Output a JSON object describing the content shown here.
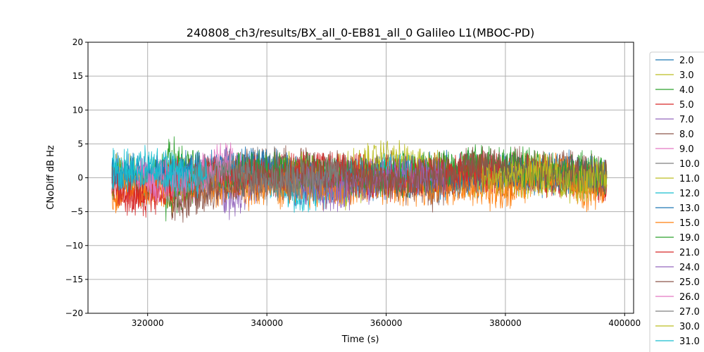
{
  "chart_data": {
    "type": "line",
    "title": "240808_ch3/results/BX_all_0-EB81_all_0 Galileo L1(MBOC-PD)",
    "xlabel": "Time (s)",
    "ylabel": "CNoDiff dB Hz",
    "xlim": [
      310000,
      401500
    ],
    "ylim": [
      -20,
      20
    ],
    "xticks": [
      320000,
      340000,
      360000,
      380000,
      400000
    ],
    "xtick_labels": [
      "320000",
      "340000",
      "360000",
      "380000",
      "400000"
    ],
    "yticks": [
      -20,
      -15,
      -10,
      -5,
      0,
      5,
      10,
      15,
      20
    ],
    "ytick_labels": [
      "−20",
      "−15",
      "−10",
      "−5",
      "0",
      "5",
      "10",
      "15",
      "20"
    ],
    "grid": true,
    "legend_position": "right, outside plot",
    "series": [
      {
        "name": "2.0",
        "color": "#1f77b4",
        "x": [
          314000,
          320000,
          330000,
          340000,
          350000,
          360000,
          370000,
          380000,
          390000,
          397000
        ],
        "y": [
          1.0,
          0.5,
          0.0,
          1.5,
          -0.5,
          0.5,
          1.0,
          0.5,
          0.0,
          0.5
        ]
      },
      {
        "name": "3.0",
        "color": "#bcbd22",
        "x": [
          314000,
          320000,
          330000,
          340000,
          350000,
          360000,
          370000,
          380000,
          390000,
          397000
        ],
        "y": [
          0.5,
          0.0,
          -0.5,
          0.5,
          0.0,
          3.0,
          0.5,
          0.0,
          -0.5,
          0.0
        ]
      },
      {
        "name": "4.0",
        "color": "#2ca02c",
        "x": [
          314000,
          320000,
          324000,
          330000,
          340000,
          350000,
          360000,
          370000,
          380000,
          390000,
          397000
        ],
        "y": [
          0.0,
          -1.0,
          3.0,
          0.5,
          1.0,
          0.0,
          0.5,
          1.0,
          2.0,
          0.5,
          1.0
        ]
      },
      {
        "name": "5.0",
        "color": "#d62728",
        "x": [
          314000,
          318000,
          325000,
          335000,
          345000,
          355000,
          365000,
          375000,
          385000,
          397000
        ],
        "y": [
          -1.5,
          -2.5,
          0.5,
          0.0,
          1.0,
          0.5,
          0.0,
          1.0,
          0.5,
          -1.0
        ]
      },
      {
        "name": "7.0",
        "color": "#9467bd",
        "x": [
          330000,
          334000,
          338000,
          348000,
          352000,
          360000
        ],
        "y": [
          0.0,
          -3.0,
          -1.0,
          -1.5,
          -2.0,
          0.0
        ]
      },
      {
        "name": "8.0",
        "color": "#8c564b",
        "x": [
          326000,
          330000,
          336000,
          362000,
          368000,
          375000,
          380000,
          390000,
          397000
        ],
        "y": [
          -1.0,
          0.5,
          2.0,
          0.5,
          -2.0,
          1.0,
          0.5,
          1.5,
          0.0
        ]
      },
      {
        "name": "9.0",
        "color": "#e377c2",
        "x": [
          314000,
          322000,
          328000,
          332000,
          336000
        ],
        "y": [
          -0.5,
          0.5,
          -0.5,
          2.0,
          1.0
        ]
      },
      {
        "name": "10.0",
        "color": "#7f7f7f",
        "x": [
          336000,
          340000,
          344000,
          350000,
          356000
        ],
        "y": [
          0.5,
          2.0,
          0.0,
          -1.0,
          0.5
        ]
      },
      {
        "name": "11.0",
        "color": "#bcbd22",
        "x": [
          340000,
          346000,
          352000,
          360000,
          370000
        ],
        "y": [
          0.0,
          1.0,
          -2.0,
          1.0,
          0.5
        ]
      },
      {
        "name": "12.0",
        "color": "#17becf",
        "x": [
          314000,
          320000,
          326000,
          332000,
          338000,
          346000,
          352000,
          360000,
          365000
        ],
        "y": [
          1.0,
          1.5,
          0.5,
          0.0,
          0.5,
          -3.0,
          -0.5,
          0.5,
          1.0
        ]
      },
      {
        "name": "13.0",
        "color": "#1f77b4",
        "x": [
          314000,
          320000,
          330000,
          340000,
          345000,
          366000,
          372000,
          380000,
          390000,
          397000
        ],
        "y": [
          0.5,
          0.0,
          1.0,
          2.0,
          -0.5,
          0.0,
          -1.0,
          0.5,
          1.0,
          0.0
        ]
      },
      {
        "name": "15.0",
        "color": "#ff7f0e",
        "x": [
          314000,
          316000,
          375000,
          380000,
          385000,
          390000,
          394000,
          397000
        ],
        "y": [
          -3.5,
          -2.0,
          -1.0,
          -2.5,
          0.5,
          1.0,
          -3.0,
          0.0
        ]
      },
      {
        "name": "19.0",
        "color": "#2ca02c",
        "x": [
          323000,
          330000,
          340000,
          350000,
          360000,
          370000,
          378000,
          386000,
          392000,
          397000
        ],
        "y": [
          -3.0,
          0.0,
          1.0,
          0.5,
          0.0,
          1.0,
          2.5,
          0.5,
          1.0,
          0.0
        ]
      },
      {
        "name": "21.0",
        "color": "#d62728",
        "x": [
          314000,
          318000,
          322000,
          330000,
          340000,
          350000,
          360000,
          370000,
          380000
        ],
        "y": [
          -1.0,
          -3.0,
          -2.0,
          0.5,
          0.0,
          1.0,
          -0.5,
          0.5,
          1.0
        ]
      },
      {
        "name": "24.0",
        "color": "#9467bd",
        "x": [
          345000,
          350000,
          356000,
          362000,
          370000
        ],
        "y": [
          0.0,
          -2.0,
          -1.0,
          0.5,
          0.0
        ]
      },
      {
        "name": "25.0",
        "color": "#8c564b",
        "x": [
          324000,
          330000,
          340000,
          350000,
          364000,
          370000,
          376000,
          384000,
          390000,
          397000
        ],
        "y": [
          -4.0,
          -2.0,
          0.0,
          0.5,
          -1.0,
          0.5,
          2.0,
          1.0,
          0.5,
          0.0
        ]
      },
      {
        "name": "26.0",
        "color": "#e377c2",
        "x": [
          318000,
          324000,
          330000,
          334000
        ],
        "y": [
          0.0,
          -1.0,
          0.5,
          2.5
        ]
      },
      {
        "name": "27.0",
        "color": "#7f7f7f",
        "x": [
          328000,
          334000,
          340000,
          346000,
          352000
        ],
        "y": [
          0.5,
          1.5,
          -1.0,
          0.0,
          0.5
        ]
      },
      {
        "name": "30.0",
        "color": "#bcbd22",
        "x": [
          376000,
          382000,
          388000,
          392000,
          397000
        ],
        "y": [
          0.0,
          0.5,
          1.0,
          -1.0,
          0.5
        ]
      },
      {
        "name": "31.0",
        "color": "#17becf",
        "x": [
          314000,
          318000,
          324000,
          330000
        ],
        "y": [
          0.5,
          1.0,
          0.0,
          0.5
        ]
      }
    ]
  }
}
